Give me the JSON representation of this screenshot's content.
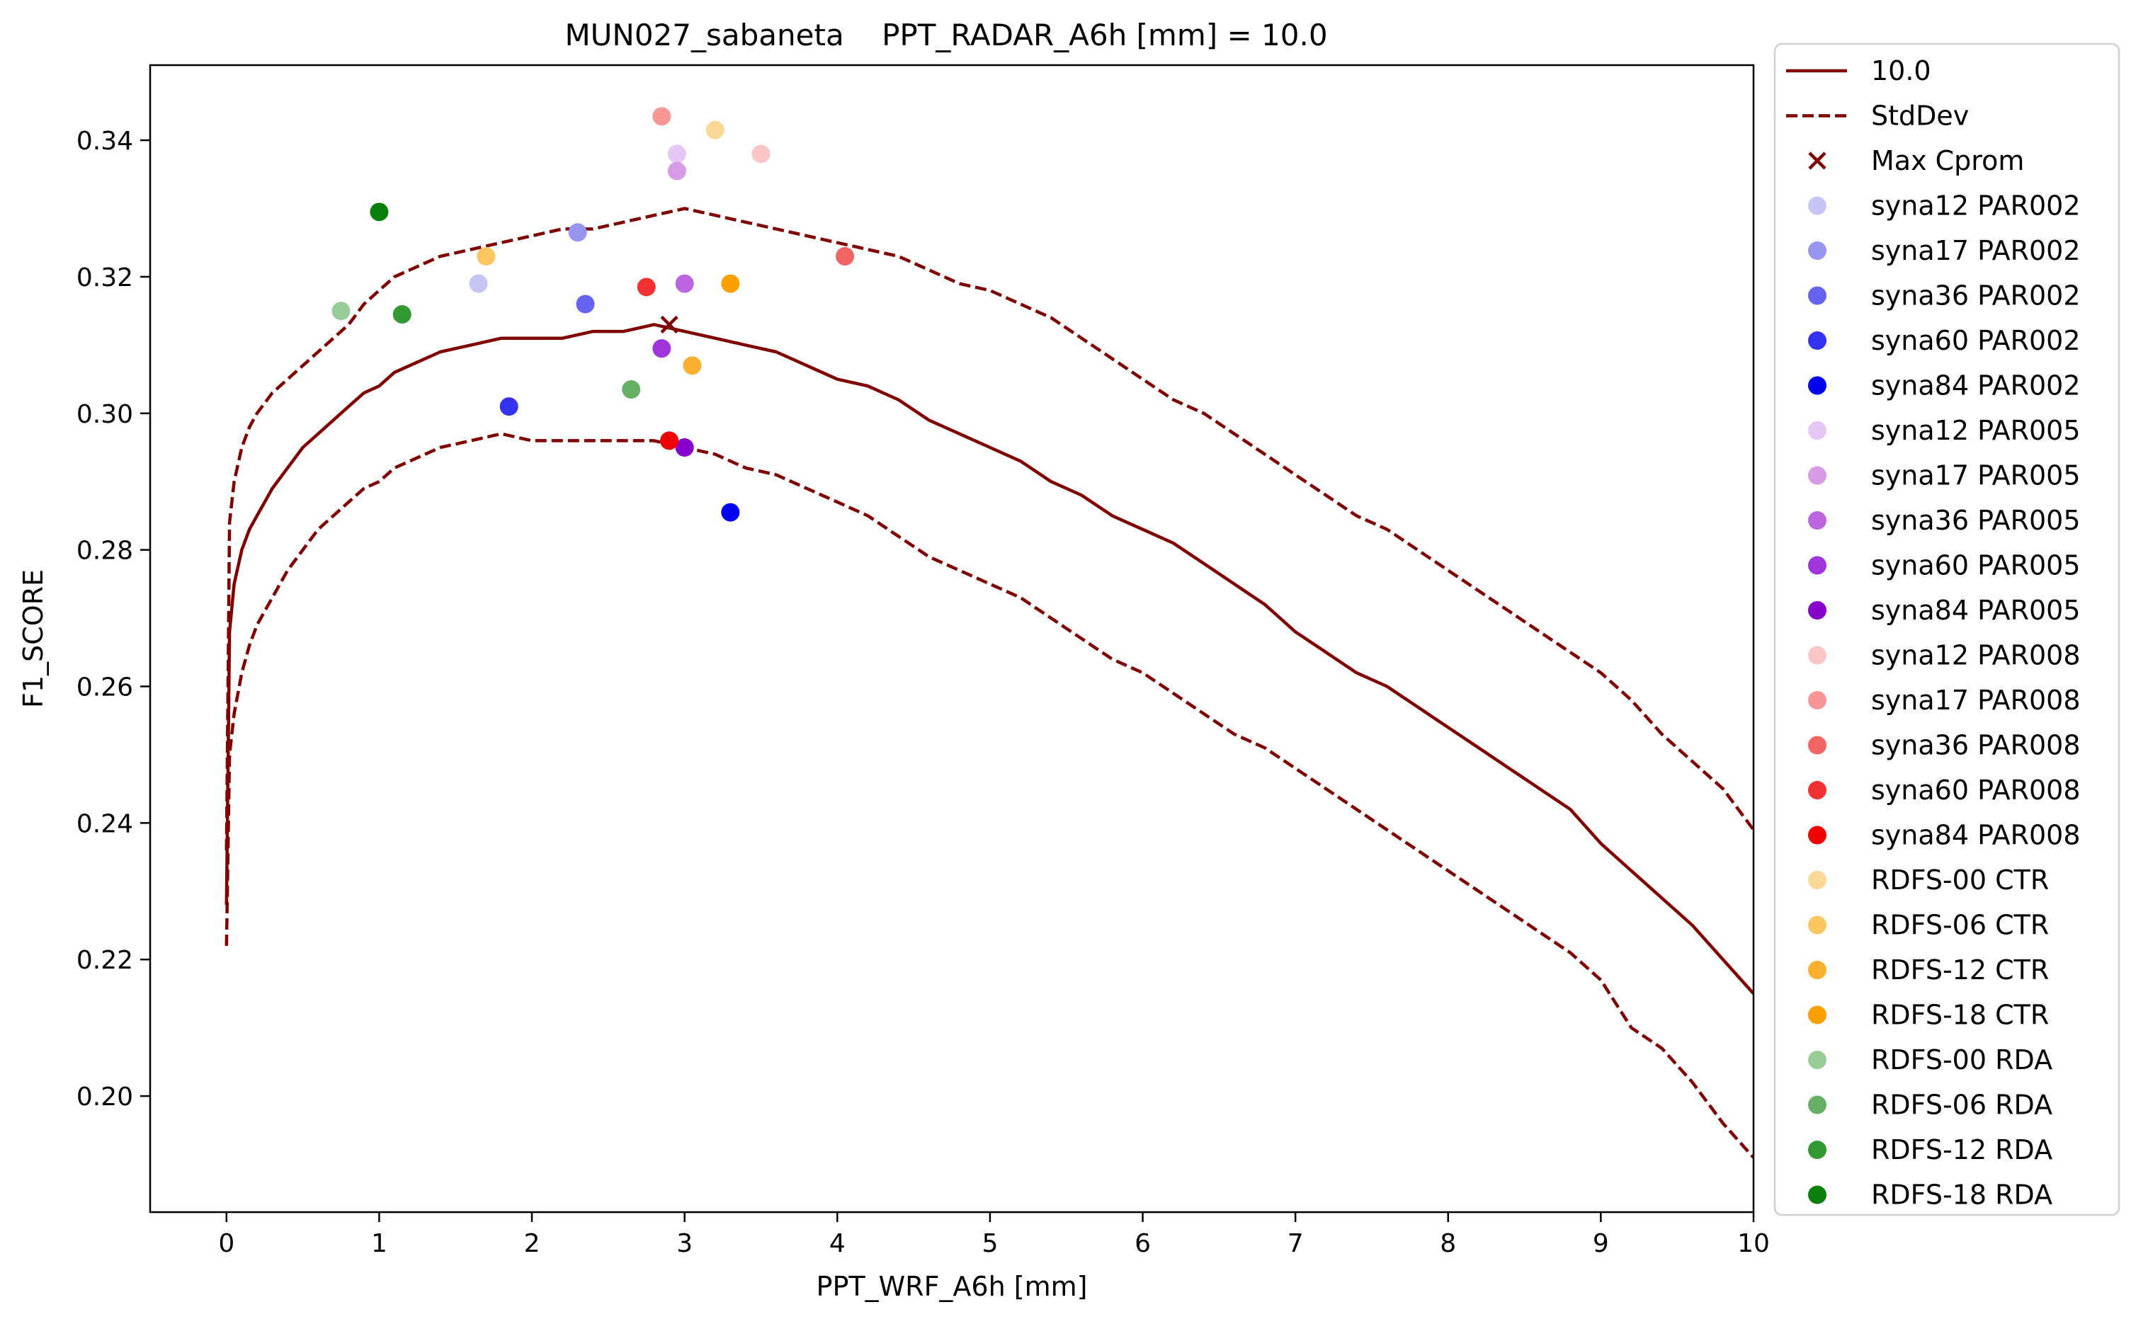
{
  "chart_data": {
    "type": "line",
    "title": "MUN027_sabaneta    PPT_RADAR_A6h [mm] = 10.0",
    "xlabel": "PPT_WRF_A6h [mm]",
    "ylabel": "F1_SCORE",
    "xlim": [
      -0.5,
      10
    ],
    "ylim": [
      0.183,
      0.351
    ],
    "xticks": [
      0,
      1,
      2,
      3,
      4,
      5,
      6,
      7,
      8,
      9,
      10
    ],
    "yticks": [
      0.2,
      0.22,
      0.24,
      0.26,
      0.28,
      0.3,
      0.32,
      0.34
    ],
    "xtick_labels": [
      "0",
      "1",
      "2",
      "3",
      "4",
      "5",
      "6",
      "7",
      "8",
      "9",
      "10"
    ],
    "ytick_labels": [
      "0.20",
      "0.22",
      "0.24",
      "0.26",
      "0.28",
      "0.30",
      "0.32",
      "0.34"
    ],
    "grid": false,
    "legend_position": "outside-right",
    "lines": [
      {
        "name": "10.0",
        "color": "#800000",
        "style": "solid",
        "x": [
          0,
          0.02,
          0.05,
          0.1,
          0.15,
          0.2,
          0.3,
          0.4,
          0.5,
          0.6,
          0.7,
          0.8,
          0.9,
          1.0,
          1.1,
          1.2,
          1.4,
          1.6,
          1.8,
          2.0,
          2.2,
          2.4,
          2.6,
          2.8,
          3.0,
          3.2,
          3.4,
          3.6,
          3.8,
          4.0,
          4.2,
          4.4,
          4.6,
          4.8,
          5.0,
          5.2,
          5.4,
          5.6,
          5.8,
          6.0,
          6.2,
          6.4,
          6.6,
          6.8,
          7.0,
          7.2,
          7.4,
          7.6,
          7.8,
          8.0,
          8.2,
          8.4,
          8.6,
          8.8,
          9.0,
          9.2,
          9.4,
          9.6,
          9.8,
          10.0
        ],
        "y": [
          0.228,
          0.268,
          0.275,
          0.28,
          0.283,
          0.285,
          0.289,
          0.292,
          0.295,
          0.297,
          0.299,
          0.301,
          0.303,
          0.304,
          0.306,
          0.307,
          0.309,
          0.31,
          0.311,
          0.311,
          0.311,
          0.312,
          0.312,
          0.313,
          0.312,
          0.311,
          0.31,
          0.309,
          0.307,
          0.305,
          0.304,
          0.302,
          0.299,
          0.297,
          0.295,
          0.293,
          0.29,
          0.288,
          0.285,
          0.283,
          0.281,
          0.278,
          0.275,
          0.272,
          0.268,
          0.265,
          0.262,
          0.26,
          0.257,
          0.254,
          0.251,
          0.248,
          0.245,
          0.242,
          0.237,
          0.233,
          0.229,
          0.225,
          0.22,
          0.215
        ]
      },
      {
        "name": "StdDev",
        "color": "#800000",
        "style": "dashed",
        "x": [
          0,
          0.02,
          0.05,
          0.1,
          0.15,
          0.2,
          0.3,
          0.4,
          0.5,
          0.6,
          0.7,
          0.8,
          0.9,
          1.0,
          1.1,
          1.2,
          1.4,
          1.6,
          1.8,
          2.0,
          2.2,
          2.4,
          2.6,
          2.8,
          3.0,
          3.2,
          3.4,
          3.6,
          3.8,
          4.0,
          4.2,
          4.4,
          4.6,
          4.8,
          5.0,
          5.2,
          5.4,
          5.6,
          5.8,
          6.0,
          6.2,
          6.4,
          6.6,
          6.8,
          7.0,
          7.2,
          7.4,
          7.6,
          7.8,
          8.0,
          8.2,
          8.4,
          8.6,
          8.8,
          9.0,
          9.2,
          9.4,
          9.6,
          9.8,
          10.0
        ],
        "y": [
          0.236,
          0.284,
          0.29,
          0.295,
          0.298,
          0.3,
          0.303,
          0.305,
          0.307,
          0.309,
          0.311,
          0.313,
          0.316,
          0.318,
          0.32,
          0.321,
          0.323,
          0.324,
          0.325,
          0.326,
          0.327,
          0.327,
          0.328,
          0.329,
          0.33,
          0.329,
          0.328,
          0.327,
          0.326,
          0.325,
          0.324,
          0.323,
          0.321,
          0.319,
          0.318,
          0.316,
          0.314,
          0.311,
          0.308,
          0.305,
          0.302,
          0.3,
          0.297,
          0.294,
          0.291,
          0.288,
          0.285,
          0.283,
          0.28,
          0.277,
          0.274,
          0.271,
          0.268,
          0.265,
          0.262,
          0.258,
          0.253,
          0.249,
          0.245,
          0.239
        ]
      },
      {
        "name": "",
        "color": "#800000",
        "style": "dashed",
        "x": [
          0,
          0.02,
          0.05,
          0.1,
          0.15,
          0.2,
          0.3,
          0.4,
          0.5,
          0.6,
          0.7,
          0.8,
          0.9,
          1.0,
          1.1,
          1.2,
          1.4,
          1.6,
          1.8,
          2.0,
          2.2,
          2.4,
          2.6,
          2.8,
          3.0,
          3.2,
          3.4,
          3.6,
          3.8,
          4.0,
          4.2,
          4.4,
          4.6,
          4.8,
          5.0,
          5.2,
          5.4,
          5.6,
          5.8,
          6.0,
          6.2,
          6.4,
          6.6,
          6.8,
          7.0,
          7.2,
          7.4,
          7.6,
          7.8,
          8.0,
          8.2,
          8.4,
          8.6,
          8.8,
          9.0,
          9.2,
          9.4,
          9.6,
          9.8,
          10.0
        ],
        "y": [
          0.222,
          0.25,
          0.256,
          0.262,
          0.266,
          0.269,
          0.273,
          0.277,
          0.28,
          0.283,
          0.285,
          0.287,
          0.289,
          0.29,
          0.292,
          0.293,
          0.295,
          0.296,
          0.297,
          0.296,
          0.296,
          0.296,
          0.296,
          0.296,
          0.295,
          0.294,
          0.292,
          0.291,
          0.289,
          0.287,
          0.285,
          0.282,
          0.279,
          0.277,
          0.275,
          0.273,
          0.27,
          0.267,
          0.264,
          0.262,
          0.259,
          0.256,
          0.253,
          0.251,
          0.248,
          0.245,
          0.242,
          0.239,
          0.236,
          0.233,
          0.23,
          0.227,
          0.224,
          0.221,
          0.217,
          0.21,
          0.207,
          0.202,
          0.196,
          0.191
        ]
      }
    ],
    "max_marker": {
      "name": "Max Cprom",
      "x": 2.9,
      "y": 0.313,
      "color": "#800000",
      "marker": "x"
    },
    "points": [
      {
        "name": "syna12 PAR002",
        "x": 1.65,
        "y": 0.319,
        "color": "#c6c6f6"
      },
      {
        "name": "syna17 PAR002",
        "x": 2.3,
        "y": 0.3265,
        "color": "#9696f0"
      },
      {
        "name": "syna36 PAR002",
        "x": 2.35,
        "y": 0.316,
        "color": "#6464ee"
      },
      {
        "name": "syna60 PAR002",
        "x": 1.85,
        "y": 0.301,
        "color": "#3232f0"
      },
      {
        "name": "syna84 PAR002",
        "x": 3.3,
        "y": 0.2855,
        "color": "#0000f0"
      },
      {
        "name": "syna12 PAR005",
        "x": 2.95,
        "y": 0.338,
        "color": "#e6c6f6"
      },
      {
        "name": "syna17 PAR005",
        "x": 2.95,
        "y": 0.3355,
        "color": "#d69ae6"
      },
      {
        "name": "syna36 PAR005",
        "x": 3.0,
        "y": 0.319,
        "color": "#bb66e0"
      },
      {
        "name": "syna60 PAR005",
        "x": 2.85,
        "y": 0.3095,
        "color": "#a035dd"
      },
      {
        "name": "syna84 PAR005",
        "x": 3.0,
        "y": 0.295,
        "color": "#8800cc"
      },
      {
        "name": "syna12 PAR008",
        "x": 3.5,
        "y": 0.338,
        "color": "#fac6c6"
      },
      {
        "name": "syna17 PAR008",
        "x": 2.85,
        "y": 0.3435,
        "color": "#f89696"
      },
      {
        "name": "syna36 PAR008",
        "x": 4.05,
        "y": 0.323,
        "color": "#f06464"
      },
      {
        "name": "syna60 PAR008",
        "x": 2.75,
        "y": 0.3185,
        "color": "#f03232"
      },
      {
        "name": "syna84 PAR008",
        "x": 2.9,
        "y": 0.296,
        "color": "#f00000"
      },
      {
        "name": " RDFS-00 CTR",
        "x": 3.2,
        "y": 0.3415,
        "color": "#fcd898"
      },
      {
        "name": " RDFS-06 CTR",
        "x": 1.7,
        "y": 0.323,
        "color": "#fcc660"
      },
      {
        "name": " RDFS-12 CTR",
        "x": 3.05,
        "y": 0.307,
        "color": "#fcb030"
      },
      {
        "name": " RDFS-18 CTR",
        "x": 3.3,
        "y": 0.319,
        "color": "#fca000"
      },
      {
        "name": " RDFS-00 RDA",
        "x": 0.75,
        "y": 0.315,
        "color": "#98cc98"
      },
      {
        "name": " RDFS-06 RDA",
        "x": 2.65,
        "y": 0.3035,
        "color": "#66b066"
      },
      {
        "name": " RDFS-12 RDA",
        "x": 1.15,
        "y": 0.3145,
        "color": "#339933"
      },
      {
        "name": " RDFS-18 RDA",
        "x": 1.0,
        "y": 0.3295,
        "color": "#0a800a"
      }
    ]
  }
}
